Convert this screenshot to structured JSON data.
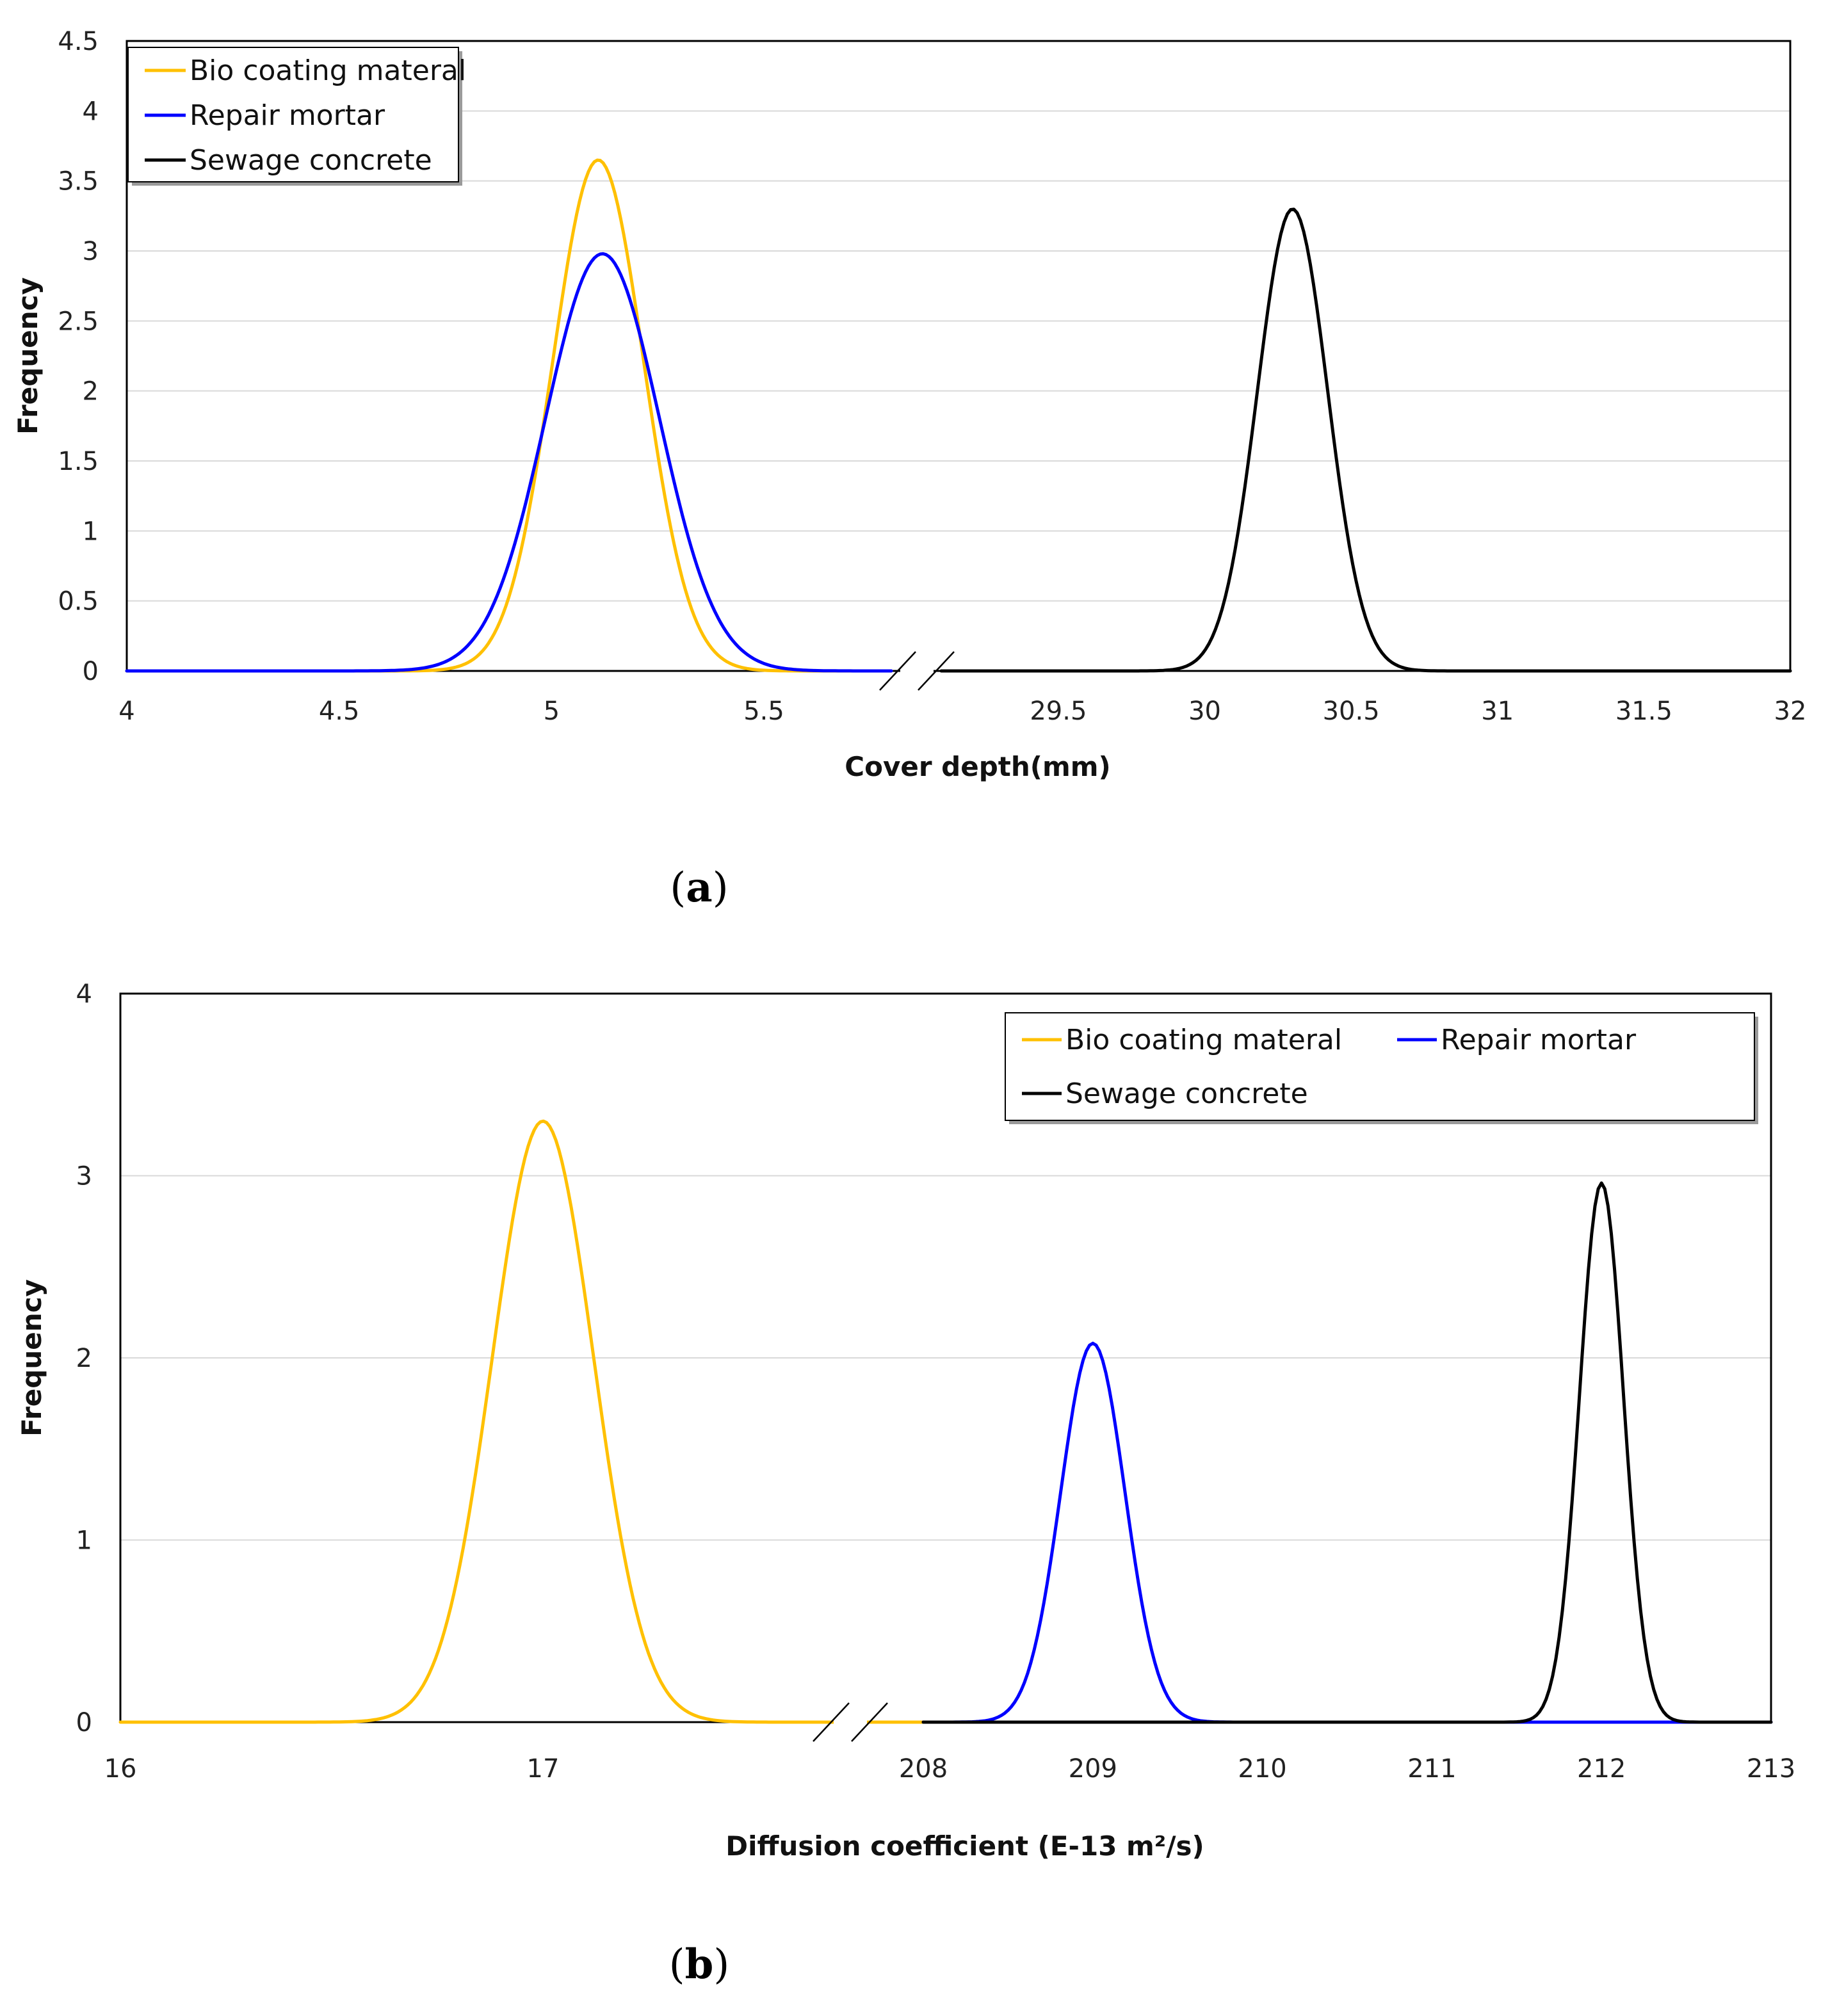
{
  "chart_data": [
    {
      "type": "line",
      "panel_label": "a",
      "title": "",
      "xlabel": "Cover depth(mm)",
      "ylabel": "Frequency",
      "ylim": [
        0,
        4.5
      ],
      "yticks": [
        "0",
        "0.5",
        "1",
        "1.5",
        "2",
        "2.5",
        "3",
        "3.5",
        "4",
        "4.5"
      ],
      "x_axis_break": true,
      "x_segments": [
        {
          "range": [
            4,
            5.8
          ],
          "ticks": [
            "4",
            "4.5",
            "5",
            "5.5"
          ]
        },
        {
          "range": [
            29.1,
            32
          ],
          "ticks": [
            "29.5",
            "30",
            "30.5",
            "31",
            "31.5",
            "32"
          ]
        }
      ],
      "legend_position": "top-left",
      "series": [
        {
          "name": "Bio coating materal",
          "color": "#FFC000",
          "segment": 0,
          "mean": 5.11,
          "sd": 0.107,
          "peak": 3.65
        },
        {
          "name": "Repair mortar",
          "color": "#0000FF",
          "segment": 0,
          "mean": 5.12,
          "sd": 0.134,
          "peak": 2.98
        },
        {
          "name": "Sewage concrete",
          "color": "#000000",
          "segment": 1,
          "mean": 30.3,
          "sd": 0.12,
          "peak": 3.3
        }
      ]
    },
    {
      "type": "line",
      "panel_label": "b",
      "title": "",
      "xlabel": "Diffusion coefficient (E-13 m²/s)",
      "ylabel": "Frequency",
      "ylim": [
        0,
        4
      ],
      "yticks": [
        "0",
        "1",
        "2",
        "3",
        "4"
      ],
      "x_axis_break": true,
      "x_segments": [
        {
          "range": [
            16,
            17.9
          ],
          "ticks": [
            "16",
            "17"
          ]
        },
        {
          "range": [
            208,
            213
          ],
          "ticks": [
            "208",
            "209",
            "210",
            "211",
            "212",
            "213"
          ]
        }
      ],
      "legend_position": "top-right",
      "series": [
        {
          "name": "Bio coating materal",
          "color": "#FFC000",
          "segment": 0,
          "mean": 17.0,
          "sd": 0.12,
          "peak": 3.3
        },
        {
          "name": "Repair mortar",
          "color": "#0000FF",
          "segment": 1,
          "mean": 209.0,
          "sd": 0.19,
          "peak": 2.08
        },
        {
          "name": "Sewage concrete",
          "color": "#000000",
          "segment": 1,
          "mean": 212.0,
          "sd": 0.13,
          "peak": 2.96
        }
      ]
    }
  ]
}
